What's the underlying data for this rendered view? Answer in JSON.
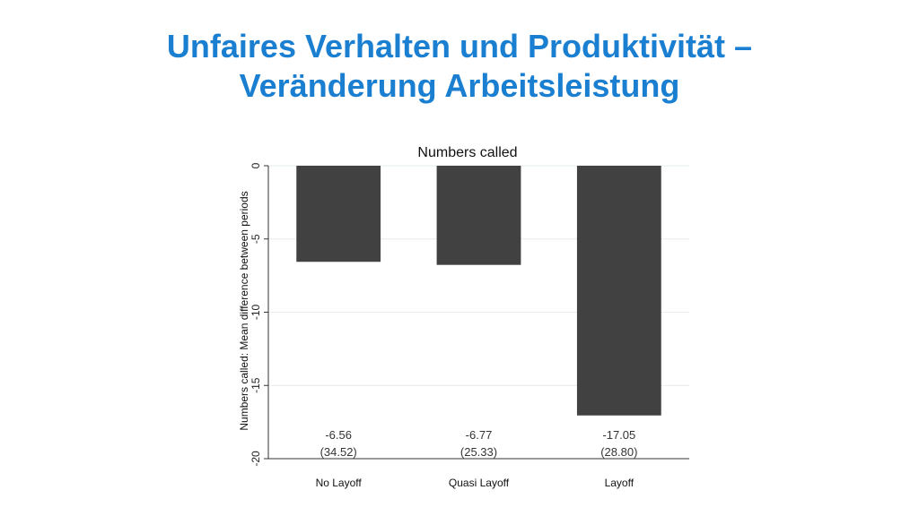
{
  "slide": {
    "title_line1": "Unfaires Verhalten und Produktivität –",
    "title_line2": "Veränderung Arbeitsleistung"
  },
  "chart_data": {
    "type": "bar",
    "title": "Numbers called",
    "xlabel": "",
    "ylabel": "Numbers called: Mean difference between periods",
    "categories": [
      "No Layoff",
      "Quasi Layoff",
      "Layoff"
    ],
    "values": [
      -6.56,
      -6.77,
      -17.05
    ],
    "value_labels": [
      "-6.56",
      "-6.77",
      "-17.05"
    ],
    "sd_labels": [
      "(34.52)",
      "(25.33)",
      "(28.80)"
    ],
    "ylim": [
      -20,
      0
    ],
    "yticks": [
      0,
      -5,
      -10,
      -15,
      -20
    ],
    "ytick_labels": [
      "0",
      "-5",
      "-10",
      "-15",
      "-20"
    ],
    "grid": true,
    "bar_color": "#414141",
    "grid_color": "#e6ecef"
  },
  "colors": {
    "title": "#1a7fd0"
  }
}
